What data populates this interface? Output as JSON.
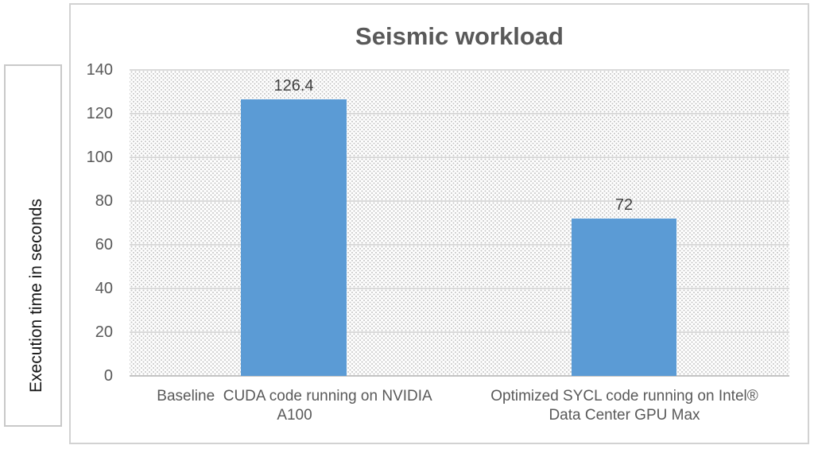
{
  "chart_data": {
    "type": "bar",
    "title": "Seismic workload",
    "ylabel": "Execution time in seconds",
    "xlabel": "",
    "categories": [
      "Baseline  CUDA code running on NVIDIA A100",
      "Optimized SYCL code running on Intel® Data Center GPU Max"
    ],
    "values": [
      126.4,
      72
    ],
    "value_labels": [
      "126.4",
      "72"
    ],
    "yticks": [
      "140",
      "120",
      "100",
      "80",
      "60",
      "40",
      "20",
      "0"
    ],
    "ylim": [
      0,
      140
    ],
    "bar_color": "#5B9BD5",
    "grid": true,
    "legend": false,
    "plot_background": "dotted-pattern"
  }
}
